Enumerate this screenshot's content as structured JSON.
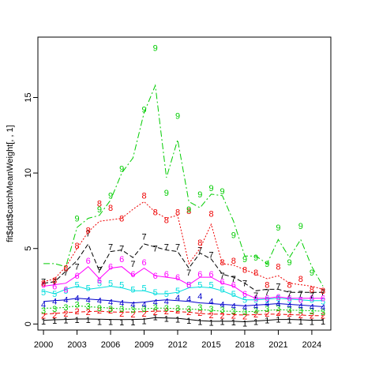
{
  "chart_data": {
    "type": "line",
    "ylabel": "fit$dat$catchMeanWeight[, , 1]",
    "xlim": [
      1999.5,
      2025.7
    ],
    "ylim": [
      -0.4,
      19.0
    ],
    "x": [
      2000,
      2001,
      2002,
      2003,
      2004,
      2005,
      2006,
      2007,
      2008,
      2009,
      2010,
      2011,
      2012,
      2013,
      2014,
      2015,
      2016,
      2017,
      2018,
      2019,
      2020,
      2021,
      2022,
      2023,
      2024,
      2025
    ],
    "x_ticks": [
      2000,
      2003,
      2006,
      2009,
      2012,
      2015,
      2018,
      2021,
      2024
    ],
    "x_tick_labels": [
      "2000",
      "2003",
      "2006",
      "2009",
      "2012",
      "2015",
      "2018",
      "2021",
      "2024"
    ],
    "y_ticks": [
      0,
      5,
      10,
      15
    ],
    "y_tick_labels": [
      "0",
      "5",
      "10",
      "15"
    ],
    "grid": false,
    "series": [
      {
        "label": "1",
        "color": "#000000",
        "dash": "",
        "fitted": [
          0.25,
          0.28,
          0.3,
          0.33,
          0.33,
          0.32,
          0.3,
          0.29,
          0.3,
          0.32,
          0.42,
          0.4,
          0.38,
          0.3,
          0.22,
          0.18,
          0.18,
          0.18,
          0.15,
          0.2,
          0.25,
          0.3,
          0.3,
          0.28,
          0.25,
          0.25
        ],
        "observed": [
          0.18,
          0.22,
          0.25,
          0.28,
          0.28,
          0.15,
          0.15,
          0.12,
          0.12,
          0.2,
          0.45,
          0.35,
          0.3,
          0.22,
          0.15,
          0.08,
          0.15,
          0.12,
          0.05,
          0.15,
          0.25,
          0.3,
          0.25,
          0.18,
          0.15,
          0.18
        ]
      },
      {
        "label": "2",
        "color": "#ee0000",
        "dash": "5,3",
        "fitted": [
          0.65,
          0.7,
          0.75,
          0.8,
          0.82,
          0.85,
          0.8,
          0.78,
          0.8,
          0.82,
          0.85,
          0.85,
          0.82,
          0.78,
          0.7,
          0.65,
          0.65,
          0.62,
          0.6,
          0.62,
          0.65,
          0.65,
          0.62,
          0.6,
          0.55,
          0.55
        ],
        "observed": [
          0.55,
          0.6,
          0.7,
          0.85,
          0.8,
          0.9,
          0.9,
          0.7,
          0.65,
          0.7,
          0.8,
          0.85,
          0.9,
          0.8,
          0.75,
          0.6,
          0.55,
          0.55,
          0.5,
          0.65,
          0.7,
          0.75,
          0.7,
          0.6,
          0.55,
          0.55
        ]
      },
      {
        "label": "3",
        "color": "#00cc00",
        "dash": "2,2",
        "fitted": [
          1.05,
          1.05,
          1.1,
          1.2,
          1.15,
          1.1,
          1.05,
          1.0,
          1.0,
          1.0,
          1.05,
          1.05,
          1.0,
          1.0,
          0.95,
          0.9,
          0.85,
          0.85,
          0.8,
          0.85,
          0.9,
          0.95,
          0.92,
          0.9,
          0.88,
          0.85
        ],
        "observed": [
          0.9,
          1.0,
          1.1,
          1.3,
          1.2,
          1.05,
          1.0,
          1.0,
          0.95,
          1.0,
          1.1,
          1.05,
          1.05,
          1.0,
          1.1,
          1.0,
          0.95,
          0.85,
          0.8,
          0.9,
          1.0,
          1.05,
          0.95,
          0.9,
          0.85,
          0.8
        ]
      },
      {
        "label": "4",
        "color": "#0000cc",
        "dash": "",
        "fitted": [
          1.5,
          1.55,
          1.6,
          1.7,
          1.65,
          1.6,
          1.55,
          1.45,
          1.4,
          1.45,
          1.55,
          1.6,
          1.55,
          1.5,
          1.4,
          1.35,
          1.3,
          1.25,
          1.2,
          1.25,
          1.3,
          1.35,
          1.3,
          1.25,
          1.2,
          1.15
        ],
        "observed": [
          1.3,
          1.5,
          1.6,
          1.7,
          1.6,
          1.55,
          1.45,
          1.4,
          1.3,
          1.3,
          1.45,
          1.5,
          1.75,
          1.65,
          1.85,
          1.5,
          1.3,
          1.2,
          1.1,
          1.2,
          1.35,
          1.35,
          1.25,
          1.2,
          1.15,
          1.1
        ]
      },
      {
        "label": "5",
        "color": "#00dddd",
        "dash": "",
        "fitted": [
          2.2,
          2.0,
          2.3,
          2.5,
          2.3,
          2.4,
          2.5,
          2.4,
          2.2,
          2.2,
          2.0,
          2.0,
          2.1,
          2.4,
          2.45,
          2.4,
          2.2,
          1.9,
          1.6,
          1.6,
          1.65,
          1.7,
          1.65,
          1.6,
          1.55,
          1.55
        ],
        "observed": [
          2.1,
          2.0,
          2.2,
          2.6,
          2.4,
          2.7,
          2.7,
          2.6,
          2.3,
          2.4,
          2.1,
          2.0,
          2.2,
          2.6,
          2.6,
          2.6,
          2.3,
          2.0,
          1.6,
          1.6,
          1.6,
          1.7,
          1.6,
          1.6,
          1.6,
          1.5
        ]
      },
      {
        "label": "6",
        "color": "#ff00ff",
        "dash": "",
        "fitted": [
          2.5,
          2.6,
          2.7,
          3.2,
          3.8,
          3.0,
          3.7,
          3.8,
          3.2,
          3.7,
          3.2,
          3.1,
          3.0,
          2.6,
          3.1,
          3.1,
          2.7,
          2.5,
          2.0,
          1.7,
          1.7,
          1.8,
          1.7,
          1.7,
          1.7,
          1.7
        ],
        "observed": [
          2.6,
          2.5,
          2.3,
          3.2,
          4.2,
          2.9,
          3.8,
          4.3,
          3.3,
          4.1,
          3.2,
          3.3,
          3.1,
          2.6,
          3.3,
          3.3,
          2.8,
          2.6,
          2.0,
          1.7,
          1.7,
          1.8,
          1.7,
          1.6,
          1.7,
          1.7
        ]
      },
      {
        "label": "7",
        "color": "#000000",
        "dash": "6,3",
        "fitted": [
          2.7,
          2.8,
          3.5,
          4.2,
          5.3,
          3.5,
          4.8,
          4.9,
          4.4,
          5.3,
          5.1,
          4.9,
          4.8,
          3.7,
          4.7,
          4.3,
          3.3,
          3.1,
          2.7,
          2.2,
          2.3,
          2.3,
          2.1,
          2.1,
          2.1,
          2.1
        ],
        "observed": [
          2.8,
          2.8,
          3.4,
          3.8,
          6.0,
          3.6,
          5.1,
          5.0,
          4.0,
          5.8,
          5.0,
          5.1,
          5.1,
          3.4,
          4.9,
          4.6,
          3.2,
          3.0,
          2.7,
          1.9,
          2.1,
          2.5,
          2.0,
          2.0,
          1.9,
          2.1
        ]
      },
      {
        "label": "8",
        "color": "#ee0000",
        "dash": "2,2",
        "fitted": [
          2.8,
          3.0,
          3.8,
          5.0,
          6.1,
          6.8,
          6.9,
          7.0,
          7.6,
          8.1,
          7.4,
          7.0,
          7.2,
          4.0,
          5.0,
          6.6,
          4.0,
          3.9,
          3.6,
          3.3,
          3.0,
          3.2,
          2.7,
          2.6,
          2.5,
          2.3
        ],
        "observed": [
          2.7,
          2.9,
          3.7,
          5.2,
          6.2,
          8.0,
          7.7,
          7.0,
          null,
          8.5,
          7.4,
          6.9,
          7.4,
          7.5,
          5.4,
          7.3,
          4.1,
          4.2,
          3.6,
          3.4,
          2.6,
          3.8,
          2.6,
          3.0,
          2.3,
          2.2
        ]
      },
      {
        "label": "9",
        "color": "#00cc00",
        "dash": "8,3,2,3",
        "fitted": [
          4.0,
          4.0,
          3.8,
          6.4,
          7.0,
          7.2,
          8.2,
          10.0,
          11.0,
          14.0,
          15.8,
          9.7,
          12.2,
          8.1,
          7.7,
          8.6,
          8.5,
          6.8,
          4.5,
          4.5,
          4.0,
          5.6,
          4.4,
          5.6,
          3.8,
          2.5
        ],
        "observed": [
          null,
          null,
          null,
          7.0,
          null,
          7.6,
          8.5,
          10.3,
          null,
          14.2,
          18.3,
          8.7,
          13.8,
          7.6,
          8.6,
          9.0,
          8.8,
          5.9,
          4.3,
          4.4,
          4.0,
          6.4,
          4.1,
          6.5,
          3.4,
          null
        ]
      }
    ]
  }
}
